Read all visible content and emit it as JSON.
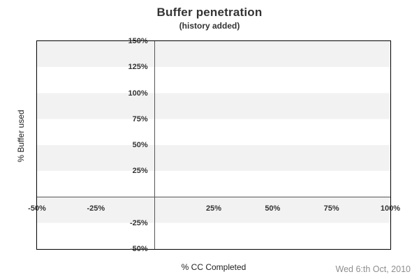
{
  "title": "Buffer penetration",
  "subtitle": "(history added)",
  "ylabel": "% Buffer used",
  "footer": {
    "xlabel": "% CC Completed",
    "date_note": "Wed 6:th Oct, 2010"
  },
  "colors": {
    "background": "#ffffff",
    "band": "#f2f2f2",
    "plot_border": "#000000",
    "zero_line": "#555555",
    "title_text": "#333333",
    "tick_text": "#333333",
    "axis_label_text": "#222222",
    "date_text": "#8e8e8e"
  },
  "chart_data": {
    "type": "line",
    "title": "Buffer penetration",
    "subtitle": "(history added)",
    "xlabel": "% CC Completed",
    "ylabel": "% Buffer used",
    "xlim": [
      -50,
      100
    ],
    "ylim": [
      -50,
      150
    ],
    "x_ticks": [
      {
        "value": -50,
        "label": "-50%"
      },
      {
        "value": -25,
        "label": "-25%"
      },
      {
        "value": 25,
        "label": "25%"
      },
      {
        "value": 50,
        "label": "50%"
      },
      {
        "value": 75,
        "label": "75%"
      },
      {
        "value": 100,
        "label": "100%"
      }
    ],
    "y_ticks": [
      {
        "value": 150,
        "label": "150%"
      },
      {
        "value": 125,
        "label": "125%"
      },
      {
        "value": 100,
        "label": "100%"
      },
      {
        "value": 75,
        "label": "75%"
      },
      {
        "value": 50,
        "label": "50%"
      },
      {
        "value": 25,
        "label": "25%"
      },
      {
        "value": -25,
        "label": "-25%"
      },
      {
        "value": -50,
        "label": "-50%"
      }
    ],
    "zero_tick_labels_omitted": true,
    "band_step_pct": 25,
    "grid_style": "alternating-horizontal-bands",
    "bands_start_shaded_at_top": true,
    "zero_axis_lines": true,
    "legend": null,
    "series": [],
    "annotations": [
      "Wed 6:th Oct, 2010"
    ]
  }
}
